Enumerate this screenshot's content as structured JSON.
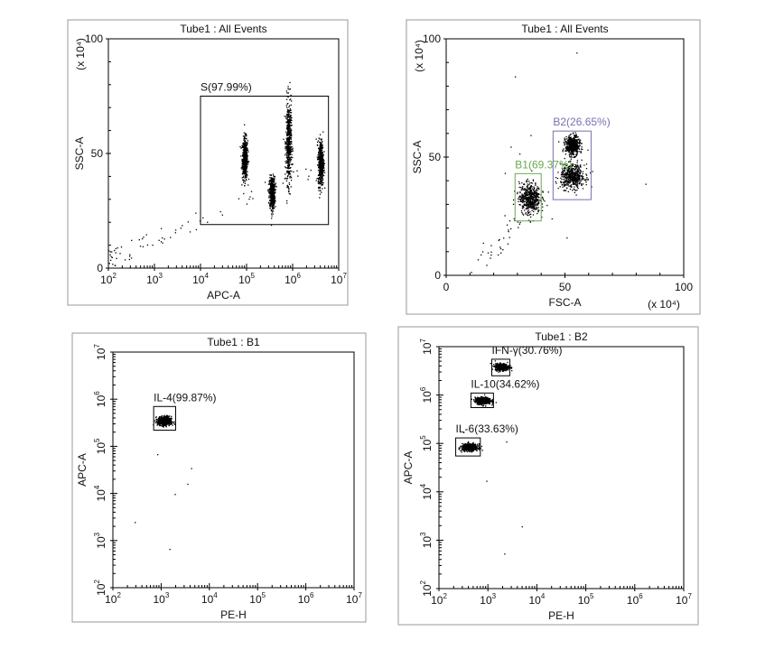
{
  "chart_data": [
    {
      "type": "scatter",
      "title": "Tube1 : All Events",
      "xlabel": "APC-A",
      "ylabel": "SSC-A",
      "xscale": "log",
      "yscale": "linear",
      "xlim": [
        100,
        10000000
      ],
      "ylim": [
        0,
        100
      ],
      "y_multiplier": "(x 10⁴)",
      "x_ticks": [
        {
          "base": "10",
          "exp": "2"
        },
        {
          "base": "10",
          "exp": "3"
        },
        {
          "base": "10",
          "exp": "4"
        },
        {
          "base": "10",
          "exp": "5"
        },
        {
          "base": "10",
          "exp": "6"
        },
        {
          "base": "10",
          "exp": "7"
        }
      ],
      "y_ticks": [
        "0",
        "50",
        "100"
      ],
      "gates": [
        {
          "label": "S(97.99%)",
          "color": "#000000",
          "x_range": [
            10000,
            6000000
          ],
          "y_range": [
            19,
            75
          ]
        }
      ],
      "clusters": [
        {
          "x_center": 90000,
          "y_center": 48,
          "x_spread": 0.03,
          "y_spread": 4.5
        },
        {
          "x_center": 350000,
          "y_center": 33,
          "x_spread": 0.03,
          "y_spread": 3.5
        },
        {
          "x_center": 800000,
          "y_center": 55,
          "x_spread": 0.03,
          "y_spread": 9
        },
        {
          "x_center": 4000000,
          "y_center": 46,
          "x_spread": 0.03,
          "y_spread": 5
        }
      ]
    },
    {
      "type": "scatter",
      "title": "Tube1 : All Events",
      "xlabel": "FSC-A",
      "ylabel": "SSC-A",
      "xscale": "linear",
      "yscale": "linear",
      "xlim": [
        0,
        100
      ],
      "ylim": [
        0,
        100
      ],
      "x_multiplier": "(x 10⁴)",
      "y_multiplier": "(x 10⁴)",
      "x_ticks": [
        "0",
        "50",
        "100"
      ],
      "y_ticks": [
        "0",
        "50",
        "100"
      ],
      "gates": [
        {
          "label": "B1(69.37%)",
          "color": "#6aa84f",
          "x_range": [
            29,
            40
          ],
          "y_range": [
            23,
            43
          ]
        },
        {
          "label": "B2(26.65%)",
          "color": "#7b6fb0",
          "x_range": [
            45,
            61
          ],
          "y_range": [
            32,
            61
          ]
        }
      ],
      "clusters": [
        {
          "x_center": 35,
          "y_center": 33,
          "x_spread": 2.2,
          "y_spread": 3.2
        },
        {
          "x_center": 53,
          "y_center": 42,
          "x_spread": 2.5,
          "y_spread": 2.5
        },
        {
          "x_center": 53,
          "y_center": 55,
          "x_spread": 1.5,
          "y_spread": 2
        }
      ]
    },
    {
      "type": "scatter",
      "title": "Tube1 : B1",
      "xlabel": "PE-H",
      "ylabel": "APC-A",
      "xscale": "log",
      "yscale": "log",
      "xlim": [
        100,
        10000000
      ],
      "ylim": [
        100,
        10000000
      ],
      "x_ticks": [
        {
          "base": "10",
          "exp": "2"
        },
        {
          "base": "10",
          "exp": "3"
        },
        {
          "base": "10",
          "exp": "4"
        },
        {
          "base": "10",
          "exp": "5"
        },
        {
          "base": "10",
          "exp": "6"
        },
        {
          "base": "10",
          "exp": "7"
        }
      ],
      "y_ticks": [
        {
          "base": "10",
          "exp": "2"
        },
        {
          "base": "10",
          "exp": "3"
        },
        {
          "base": "10",
          "exp": "4"
        },
        {
          "base": "10",
          "exp": "5"
        },
        {
          "base": "10",
          "exp": "6"
        },
        {
          "base": "10",
          "exp": "7"
        }
      ],
      "gates": [
        {
          "label": "IL-4(99.87%)",
          "color": "#000000",
          "x_range": [
            700,
            2000
          ],
          "y_range": [
            220000,
            700000
          ]
        }
      ],
      "clusters": [
        {
          "x_center": 1150,
          "y_center": 350000,
          "x_spread": 0.07,
          "y_spread": 0.05
        }
      ]
    },
    {
      "type": "scatter",
      "title": "Tube1 : B2",
      "xlabel": "PE-H",
      "ylabel": "APC-A",
      "xscale": "log",
      "yscale": "log",
      "xlim": [
        100,
        10000000
      ],
      "ylim": [
        100,
        10000000
      ],
      "x_ticks": [
        {
          "base": "10",
          "exp": "2"
        },
        {
          "base": "10",
          "exp": "3"
        },
        {
          "base": "10",
          "exp": "4"
        },
        {
          "base": "10",
          "exp": "5"
        },
        {
          "base": "10",
          "exp": "6"
        },
        {
          "base": "10",
          "exp": "7"
        }
      ],
      "y_ticks": [
        {
          "base": "10",
          "exp": "2"
        },
        {
          "base": "10",
          "exp": "3"
        },
        {
          "base": "10",
          "exp": "4"
        },
        {
          "base": "10",
          "exp": "5"
        },
        {
          "base": "10",
          "exp": "6"
        },
        {
          "base": "10",
          "exp": "7"
        }
      ],
      "gates": [
        {
          "label": "IFN-γ(30.76%)",
          "color": "#000000",
          "x_range": [
            1200,
            2800
          ],
          "y_range": [
            2500000,
            5500000
          ]
        },
        {
          "label": "IL-10(34.62%)",
          "color": "#000000",
          "x_range": [
            450,
            1300
          ],
          "y_range": [
            550000,
            1100000
          ]
        },
        {
          "label": "IL-6(33.63%)",
          "color": "#000000",
          "x_range": [
            220,
            700
          ],
          "y_range": [
            55000,
            130000
          ]
        }
      ],
      "clusters": [
        {
          "x_center": 1900,
          "y_center": 3900000,
          "x_spread": 0.07,
          "y_spread": 0.035
        },
        {
          "x_center": 780,
          "y_center": 780000,
          "x_spread": 0.08,
          "y_spread": 0.035
        },
        {
          "x_center": 420,
          "y_center": 85000,
          "x_spread": 0.08,
          "y_spread": 0.035
        }
      ]
    }
  ]
}
